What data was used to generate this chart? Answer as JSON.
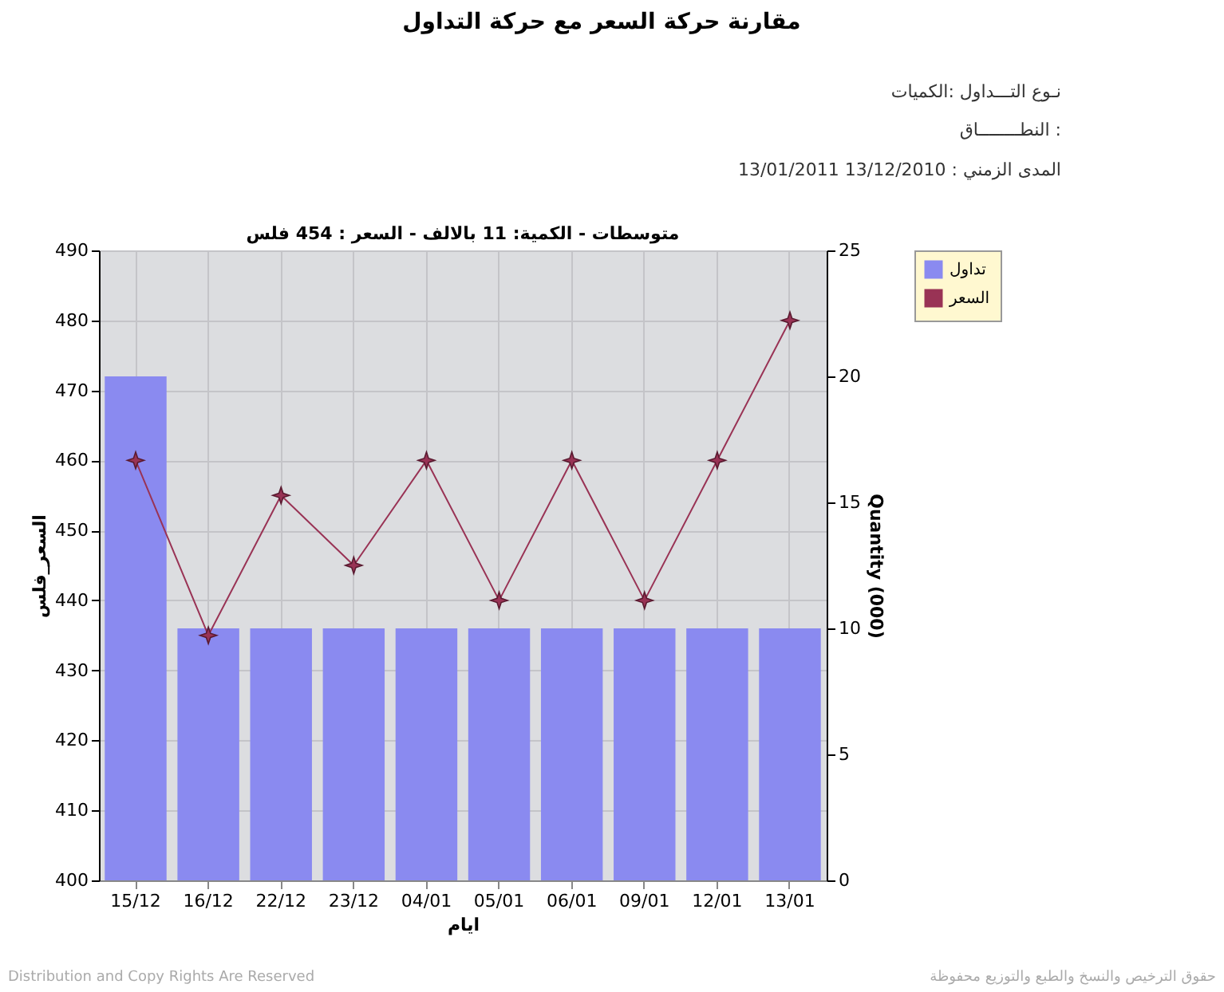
{
  "chart_data": {
    "type": "bar",
    "title": "مقارنة حركة السعر مع حركة التداول",
    "subtitle": "متوسطات - الكمية: 11 بالالف  - السعر : 454 فلس",
    "annotations": [
      "نـوع التـــداول :الكميات",
      "النطــــــــاق :",
      "المدى الزمني :   13/12/2010 13/01/2011",
      "Distribution and Copy Rights Are Reserved",
      "حقوق الترخيص والنسخ والطبع والتوزيع محفوظة"
    ],
    "xlabel": "ايام",
    "ylabel": "السعر_فلس",
    "y2label": "Quantity (000)",
    "categories": [
      "15/12",
      "16/12",
      "22/12",
      "23/12",
      "04/01",
      "05/01",
      "06/01",
      "09/01",
      "12/01",
      "13/01"
    ],
    "series": [
      {
        "name": "تداول",
        "axis": "y2",
        "color": "#8a8af0",
        "values": [
          20,
          10,
          10,
          10,
          10,
          10,
          10,
          10,
          10,
          10
        ]
      },
      {
        "name": "السعر",
        "type": "line",
        "axis": "y",
        "color": "#993355",
        "marker": "star",
        "values": [
          460,
          435,
          455,
          445,
          460,
          440,
          460,
          440,
          460,
          480
        ]
      }
    ],
    "ylim": [
      400,
      490
    ],
    "yticks": [
      400,
      410,
      420,
      430,
      440,
      450,
      460,
      470,
      480,
      490
    ],
    "y2lim": [
      0,
      25
    ],
    "y2ticks": [
      0,
      5,
      10,
      15,
      20,
      25
    ],
    "grid": true,
    "legend": "top right"
  }
}
